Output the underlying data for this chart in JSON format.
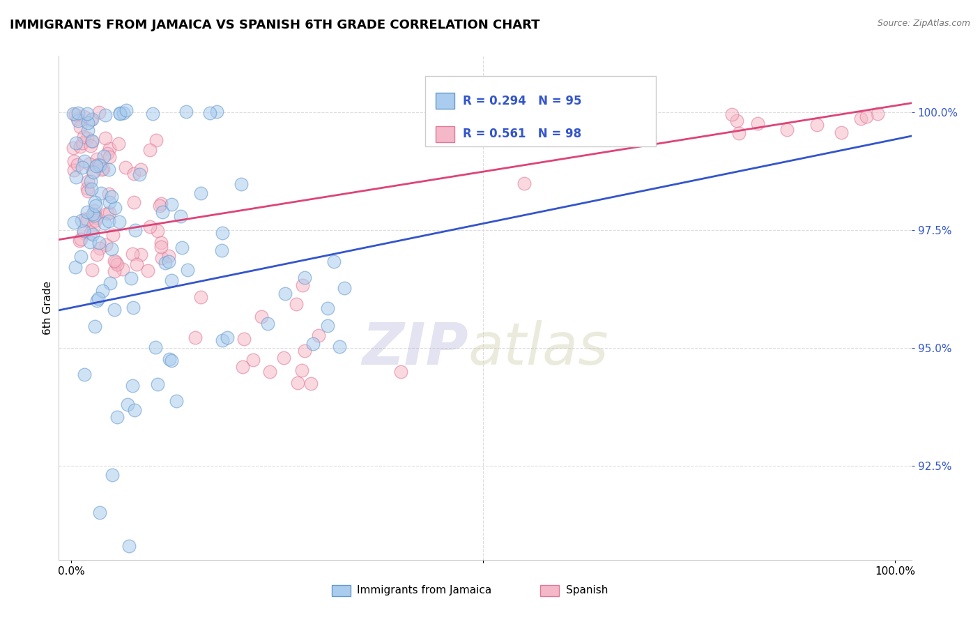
{
  "title": "IMMIGRANTS FROM JAMAICA VS SPANISH 6TH GRADE CORRELATION CHART",
  "source_text": "Source: ZipAtlas.com",
  "ylabel": "6th Grade",
  "ytick_values": [
    92.5,
    95.0,
    97.5,
    100.0
  ],
  "ymin": 90.5,
  "ymax": 101.2,
  "xmin": -1.5,
  "xmax": 102.0,
  "blue_R": 0.294,
  "blue_N": 95,
  "pink_R": 0.561,
  "pink_N": 98,
  "blue_color": "#aaccee",
  "pink_color": "#f5b8c8",
  "blue_edge": "#6699cc",
  "pink_edge": "#e07898",
  "trend_blue": "#3355cc",
  "trend_pink": "#dd4477",
  "legend_blue": "Immigrants from Jamaica",
  "legend_pink": "Spanish",
  "watermark_ZIP_color": "#b0b0d8",
  "watermark_atlas_color": "#c8c8a0",
  "grid_color": "#dddddd",
  "title_fontsize": 13,
  "tick_fontsize": 11
}
